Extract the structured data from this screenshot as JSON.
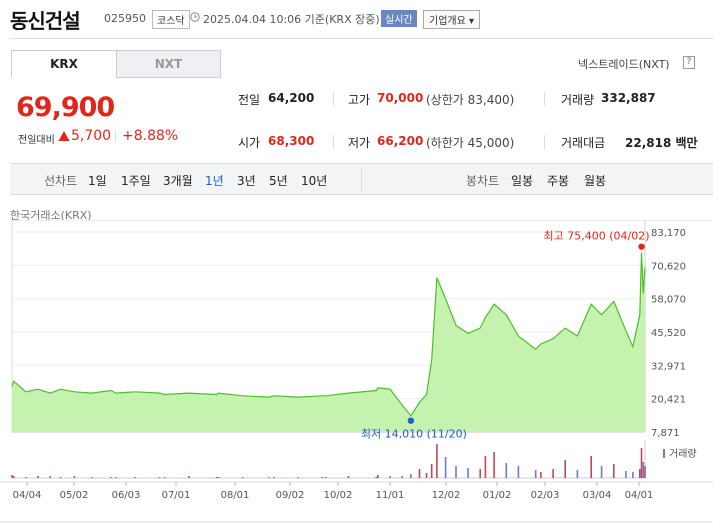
{
  "header": {
    "name": "동신건설",
    "code": "025950",
    "market": "코스닥",
    "datetime": "2025.04.04 10:06  기준(KRX 장중)",
    "live": "실시간",
    "overview": "기업개요 ▾"
  },
  "tabs": {
    "krx": "KRX",
    "nxt": "NXT",
    "nxt_link": "넥스트레이드(NXT)",
    "help": "?"
  },
  "price": {
    "current": "69,900",
    "change_label": "전일대비",
    "change": "5,700",
    "rate": "+8.88%"
  },
  "stats": [
    {
      "label": "전일",
      "value": "64,200",
      "color": "#222222"
    },
    {
      "label": "고가",
      "value": "70,000",
      "extra": "(상한가 83,400)",
      "color": "#e0271b"
    },
    {
      "label": "거래량",
      "value": "332,887",
      "color": "#222222"
    },
    {
      "label": "시가",
      "value": "68,300",
      "color": "#e0271b"
    },
    {
      "label": "저가",
      "value": "66,200",
      "extra": "(하한가 45,000)",
      "color": "#e0271b"
    },
    {
      "label": "거래대금",
      "value": "22,818 백만",
      "color": "#222222"
    }
  ],
  "periods": {
    "line_label": "선차트",
    "line_items": [
      "1일",
      "1주일",
      "3개월",
      "1년",
      "3년",
      "5년",
      "10년"
    ],
    "active": "1년",
    "candle_label": "봉차트",
    "candle_items": [
      "일봉",
      "주봉",
      "월봉"
    ]
  },
  "chart_exchange": "한국거래소(KRX)",
  "colors": {
    "up": "#e0271b",
    "down": "#1f5fc7",
    "line": "#4bbf2a",
    "fill": "#c6f2b0"
  },
  "chart_data": {
    "type": "area",
    "x": [
      "2024-04-04",
      "2024-04-05",
      "2024-04-12",
      "2024-04-19",
      "2024-04-26",
      "2024-05-02",
      "2024-05-10",
      "2024-05-20",
      "2024-05-31",
      "2024-06-03",
      "2024-06-14",
      "2024-06-28",
      "2024-07-01",
      "2024-07-15",
      "2024-07-31",
      "2024-08-01",
      "2024-08-15",
      "2024-08-30",
      "2024-09-02",
      "2024-09-16",
      "2024-09-30",
      "2024-10-02",
      "2024-10-15",
      "2024-10-31",
      "2024-11-01",
      "2024-11-08",
      "2024-11-15",
      "2024-11-20",
      "2024-11-25",
      "2024-11-29",
      "2024-12-02",
      "2024-12-05",
      "2024-12-10",
      "2024-12-16",
      "2024-12-23",
      "2024-12-30",
      "2025-01-02",
      "2025-01-07",
      "2025-01-14",
      "2025-01-21",
      "2025-01-31",
      "2025-02-03",
      "2025-02-10",
      "2025-02-17",
      "2025-02-24",
      "2025-03-04",
      "2025-03-10",
      "2025-03-17",
      "2025-03-24",
      "2025-03-28",
      "2025-04-01",
      "2025-04-02",
      "2025-04-03",
      "2025-04-04"
    ],
    "y": [
      25000,
      27000,
      23000,
      24000,
      22500,
      24000,
      23000,
      22500,
      23500,
      22500,
      23000,
      22500,
      22000,
      22500,
      22000,
      22500,
      21500,
      21000,
      21500,
      21000,
      21500,
      21500,
      22500,
      23500,
      24500,
      24000,
      18000,
      14010,
      19000,
      22000,
      35000,
      66000,
      58000,
      48000,
      45000,
      47000,
      51000,
      56000,
      52000,
      44000,
      39000,
      41000,
      43000,
      47000,
      44000,
      56000,
      52000,
      57000,
      46000,
      40000,
      52000,
      75400,
      60000,
      69900
    ],
    "high": {
      "label": "최고 75,400 (04/02)",
      "value": 75400
    },
    "low": {
      "label": "최저 14,010 (11/20)",
      "value": 14010
    },
    "yticks": [
      "83,170",
      "70,620",
      "58,070",
      "45,520",
      "32,971",
      "20,421",
      "7,871"
    ],
    "xticks": [
      "04/04",
      "05/02",
      "06/03",
      "07/01",
      "08/01",
      "09/02",
      "10/02",
      "11/01",
      "12/02",
      "01/02",
      "02/03",
      "03/04",
      "04/01"
    ],
    "volume_label": "거래량",
    "volume": [
      3,
      2,
      1,
      2,
      2,
      1,
      2,
      1,
      1,
      1,
      1,
      1,
      1,
      2,
      1,
      1,
      1,
      1,
      1,
      1,
      1,
      1,
      2,
      1,
      3,
      2,
      2,
      4,
      9,
      5,
      14,
      34,
      21,
      12,
      10,
      9,
      22,
      26,
      15,
      12,
      8,
      6,
      9,
      18,
      8,
      22,
      12,
      14,
      7,
      6,
      9,
      30,
      16,
      12
    ]
  }
}
